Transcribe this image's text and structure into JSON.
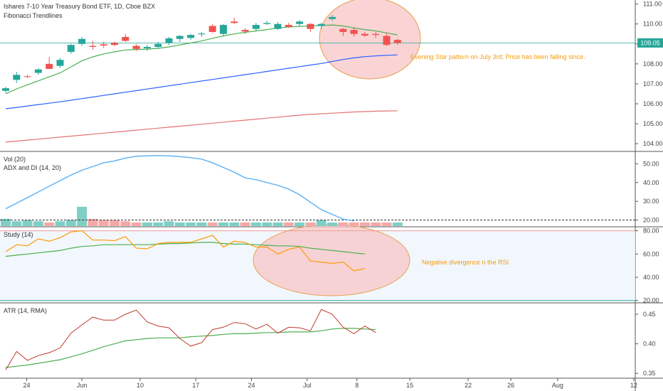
{
  "header": {
    "title": "Ishares 7-10 Year Treasury Bond ETF, 1D, Cboe BZX",
    "subtitle": "Fibonacci Trendlines"
  },
  "colors": {
    "up": "#26a69a",
    "down": "#ef5350",
    "ma_green": "#4caf50",
    "ma_blue": "#2962ff",
    "ma_red": "#e57373",
    "vol_up": "#7fcfc5",
    "vol_down": "#f4a9a8",
    "adx": "#64b5f6",
    "rsi": "#ff9800",
    "rsi_ma": "#4caf50",
    "atr": "#c0392b",
    "atr_ma": "#4caf50",
    "circle_fill": "#f8c6c6",
    "circle_stroke": "#e8a050",
    "price_tag": "#26a69a",
    "note": "#f39c12"
  },
  "annotations": {
    "evening_star": "Evening Star pattern on July 3rd; Price has been falling since.",
    "rsi_divergence": "Negative divergence n the RSI"
  },
  "chart_data": [
    {
      "type": "candlestick",
      "title": "Ishares 7-10 Year Treasury Bond ETF, 1D, Cboe BZX",
      "ylim": [
        103.65,
        111.2
      ],
      "yticks": [
        104.0,
        105.0,
        106.0,
        107.0,
        108.0,
        109.0,
        110.0,
        111.0
      ],
      "ytick_labels": [
        "104.00",
        "105.00",
        "106.00",
        "107.00",
        "108.00",
        "109.00",
        "110.00",
        "111.00"
      ],
      "last_price": 109.05,
      "last_price_label": "109.05",
      "candles": [
        {
          "o": 106.65,
          "h": 106.85,
          "l": 106.55,
          "c": 106.78
        },
        {
          "o": 107.2,
          "h": 107.6,
          "l": 107.05,
          "c": 107.45
        },
        {
          "o": 107.38,
          "h": 107.45,
          "l": 107.28,
          "c": 107.35
        },
        {
          "o": 107.55,
          "h": 107.8,
          "l": 107.45,
          "c": 107.72
        },
        {
          "o": 108.0,
          "h": 108.35,
          "l": 107.8,
          "c": 107.75
        },
        {
          "o": 107.9,
          "h": 108.3,
          "l": 107.8,
          "c": 108.2
        },
        {
          "o": 108.6,
          "h": 109.0,
          "l": 108.5,
          "c": 108.95
        },
        {
          "o": 109.0,
          "h": 109.35,
          "l": 108.9,
          "c": 109.25
        },
        {
          "o": 108.9,
          "h": 109.15,
          "l": 108.7,
          "c": 108.85
        },
        {
          "o": 108.98,
          "h": 109.1,
          "l": 108.8,
          "c": 108.92
        },
        {
          "o": 109.05,
          "h": 109.12,
          "l": 108.88,
          "c": 108.95
        },
        {
          "o": 109.35,
          "h": 109.5,
          "l": 109.1,
          "c": 109.15
        },
        {
          "o": 108.9,
          "h": 109.0,
          "l": 108.65,
          "c": 108.75
        },
        {
          "o": 108.78,
          "h": 108.95,
          "l": 108.65,
          "c": 108.85
        },
        {
          "o": 108.85,
          "h": 109.1,
          "l": 108.75,
          "c": 109.0
        },
        {
          "o": 109.05,
          "h": 109.35,
          "l": 108.95,
          "c": 109.28
        },
        {
          "o": 109.25,
          "h": 109.45,
          "l": 109.1,
          "c": 109.4
        },
        {
          "o": 109.3,
          "h": 109.5,
          "l": 109.2,
          "c": 109.45
        },
        {
          "o": 109.48,
          "h": 109.6,
          "l": 109.35,
          "c": 109.52
        },
        {
          "o": 109.9,
          "h": 110.0,
          "l": 109.55,
          "c": 109.6
        },
        {
          "o": 109.5,
          "h": 110.0,
          "l": 109.4,
          "c": 109.95
        },
        {
          "o": 110.12,
          "h": 110.3,
          "l": 110.0,
          "c": 110.05
        },
        {
          "o": 109.7,
          "h": 109.8,
          "l": 109.5,
          "c": 109.62
        },
        {
          "o": 109.75,
          "h": 110.05,
          "l": 109.65,
          "c": 109.95
        },
        {
          "o": 110.0,
          "h": 110.15,
          "l": 109.95,
          "c": 110.05
        },
        {
          "o": 109.75,
          "h": 110.1,
          "l": 109.7,
          "c": 110.0
        },
        {
          "o": 109.95,
          "h": 110.05,
          "l": 109.8,
          "c": 109.85
        },
        {
          "o": 110.0,
          "h": 110.2,
          "l": 109.9,
          "c": 110.12
        },
        {
          "o": 110.0,
          "h": 110.05,
          "l": 109.6,
          "c": 109.75
        },
        {
          "o": 109.9,
          "h": 110.05,
          "l": 109.75,
          "c": 110.0
        },
        {
          "o": 110.25,
          "h": 110.45,
          "l": 110.15,
          "c": 110.35
        },
        {
          "o": 109.75,
          "h": 109.8,
          "l": 109.4,
          "c": 109.6
        },
        {
          "o": 109.7,
          "h": 109.85,
          "l": 109.35,
          "c": 109.5
        },
        {
          "o": 109.5,
          "h": 109.6,
          "l": 109.35,
          "c": 109.42
        },
        {
          "o": 109.5,
          "h": 109.6,
          "l": 109.3,
          "c": 109.45
        },
        {
          "o": 109.4,
          "h": 109.55,
          "l": 108.9,
          "c": 108.95
        },
        {
          "o": 109.2,
          "h": 109.25,
          "l": 108.95,
          "c": 109.05
        }
      ],
      "ma_green": [
        106.5,
        106.75,
        106.95,
        107.15,
        107.35,
        107.55,
        107.85,
        108.15,
        108.35,
        108.5,
        108.6,
        108.7,
        108.72,
        108.74,
        108.78,
        108.85,
        108.95,
        109.05,
        109.15,
        109.28,
        109.4,
        109.5,
        109.58,
        109.65,
        109.72,
        109.8,
        109.85,
        109.88,
        109.9,
        109.92,
        109.95,
        109.9,
        109.8,
        109.72,
        109.65,
        109.55,
        109.45
      ],
      "ma_blue": [
        105.75,
        105.82,
        105.89,
        105.96,
        106.03,
        106.1,
        106.18,
        106.26,
        106.34,
        106.42,
        106.5,
        106.58,
        106.66,
        106.74,
        106.82,
        106.9,
        106.98,
        107.06,
        107.14,
        107.22,
        107.3,
        107.38,
        107.46,
        107.54,
        107.62,
        107.7,
        107.78,
        107.86,
        107.94,
        108.02,
        108.12,
        108.22,
        108.3,
        108.36,
        108.4,
        108.43,
        108.45
      ],
      "ma_red": [
        104.08,
        104.13,
        104.18,
        104.23,
        104.28,
        104.33,
        104.38,
        104.43,
        104.48,
        104.53,
        104.58,
        104.63,
        104.68,
        104.73,
        104.78,
        104.83,
        104.88,
        104.93,
        104.98,
        105.03,
        105.08,
        105.13,
        105.18,
        105.23,
        105.28,
        105.33,
        105.38,
        105.43,
        105.47,
        105.5,
        105.53,
        105.56,
        105.59,
        105.61,
        105.63,
        105.64,
        105.65
      ]
    },
    {
      "type": "bar",
      "title": "Vol (20)",
      "volume": [
        0.6,
        0.4,
        0.5,
        0.4,
        0.3,
        0.4,
        0.5,
        1.6,
        0.6,
        0.5,
        0.5,
        0.4,
        0.3,
        0.3,
        0.3,
        0.4,
        0.3,
        0.3,
        0.3,
        0.3,
        0.3,
        0.3,
        0.3,
        0.3,
        0.3,
        0.3,
        0.3,
        0.3,
        0.3,
        0.5,
        0.3,
        0.3,
        0.3,
        0.3,
        0.3,
        0.3,
        0.3
      ],
      "volume_up": [
        1,
        1,
        1,
        1,
        0,
        1,
        1,
        1,
        0,
        0,
        0,
        0,
        0,
        1,
        1,
        1,
        1,
        1,
        1,
        0,
        1,
        1,
        0,
        1,
        1,
        1,
        0,
        1,
        0,
        1,
        1,
        0,
        0,
        0,
        0,
        0,
        1
      ]
    },
    {
      "type": "line",
      "title": "ADX and DI (14, 20)",
      "ylim": [
        16.8,
        56.2
      ],
      "yticks": [
        20,
        30,
        40,
        50
      ],
      "ytick_labels": [
        "20.00",
        "30.00",
        "40.00",
        "50.00"
      ],
      "reference_level": 20,
      "adx": [
        26,
        29,
        32,
        35,
        38,
        41,
        44,
        46.5,
        48.5,
        50.5,
        51.5,
        53,
        54,
        54.2,
        54.4,
        54.2,
        53.8,
        53.3,
        52.5,
        50.5,
        48,
        45.5,
        42.5,
        41.5,
        40,
        38.5,
        36.5,
        33.5,
        29.5,
        25.5,
        23,
        20.5,
        19.5
      ]
    },
    {
      "type": "line",
      "title": "Study (14)",
      "ylim": [
        18.6,
        82.8
      ],
      "yticks": [
        20,
        40,
        60,
        80
      ],
      "ytick_labels": [
        "20.00",
        "40.00",
        "60.00",
        "80.00"
      ],
      "levels": [
        80,
        20
      ],
      "rsi": [
        62,
        68,
        67,
        73,
        71,
        74,
        79,
        80,
        72,
        72,
        71.5,
        75,
        65,
        64.5,
        69,
        70,
        70,
        70,
        73,
        76,
        66,
        71,
        70,
        66,
        66,
        60,
        64,
        66,
        54,
        53,
        52,
        53,
        45.5,
        47.5
      ],
      "rsi_ma": [
        58,
        59,
        60,
        61,
        62,
        63,
        65,
        66.5,
        67,
        68,
        68,
        68,
        68,
        68,
        68.5,
        69,
        69,
        69.5,
        70,
        70,
        69,
        68.5,
        68.5,
        68,
        67.5,
        67,
        67,
        66.5,
        65,
        64,
        63,
        62,
        61,
        60
      ]
    },
    {
      "type": "line",
      "title": "ATR (14, RMA)",
      "ylim": [
        0.343,
        0.468
      ],
      "yticks": [
        0.35,
        0.4,
        0.45
      ],
      "ytick_labels": [
        "0.35",
        "0.40",
        "0.45"
      ],
      "atr": [
        0.356,
        0.387,
        0.372,
        0.38,
        0.385,
        0.393,
        0.418,
        0.432,
        0.445,
        0.44,
        0.44,
        0.45,
        0.457,
        0.437,
        0.43,
        0.427,
        0.409,
        0.396,
        0.402,
        0.424,
        0.428,
        0.436,
        0.434,
        0.425,
        0.433,
        0.418,
        0.428,
        0.427,
        0.422,
        0.458,
        0.45,
        0.428,
        0.417,
        0.43,
        0.419
      ],
      "atr_ma": [
        0.36,
        0.362,
        0.364,
        0.367,
        0.37,
        0.373,
        0.378,
        0.383,
        0.389,
        0.395,
        0.4,
        0.405,
        0.407,
        0.409,
        0.41,
        0.41,
        0.41,
        0.412,
        0.413,
        0.414,
        0.416,
        0.417,
        0.417,
        0.418,
        0.419,
        0.419,
        0.42,
        0.42,
        0.42,
        0.422,
        0.425,
        0.426,
        0.426,
        0.425,
        0.424
      ]
    }
  ],
  "x_axis": {
    "labels": [
      "24",
      "Jun",
      "10",
      "17",
      "24",
      "Jul",
      "8",
      "15",
      "22",
      "26",
      "Aug",
      "12"
    ]
  }
}
